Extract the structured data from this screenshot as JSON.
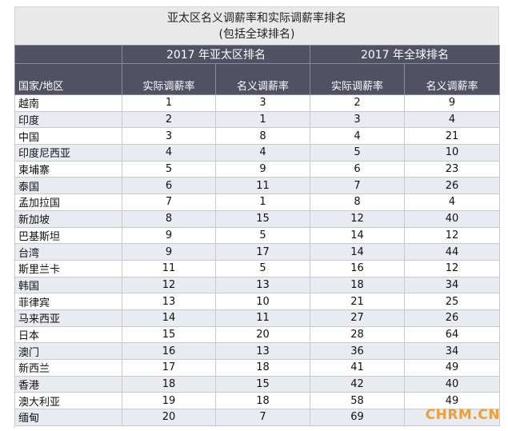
{
  "title": {
    "line1": "亚太区名义调薪率和实际调薪率排名",
    "line2": "(包括全球排名)"
  },
  "headers": {
    "group_apac": "2017 年亚太区排名",
    "group_global": "2017 年全球排名",
    "region": "国家/地区",
    "apac_real": "实际调薪率",
    "apac_nominal": "名义调薪率",
    "global_real": "实际调薪率",
    "global_nominal": "名义调薪率"
  },
  "rows": [
    {
      "name": "越南",
      "apac_real": "1",
      "apac_nominal": "3",
      "global_real": "2",
      "global_nominal": "9"
    },
    {
      "name": "印度",
      "apac_real": "2",
      "apac_nominal": "1",
      "global_real": "3",
      "global_nominal": "4"
    },
    {
      "name": "中国",
      "apac_real": "3",
      "apac_nominal": "8",
      "global_real": "4",
      "global_nominal": "21"
    },
    {
      "name": "印度尼西亚",
      "apac_real": "4",
      "apac_nominal": "4",
      "global_real": "5",
      "global_nominal": "10"
    },
    {
      "name": "柬埔寨",
      "apac_real": "5",
      "apac_nominal": "9",
      "global_real": "6",
      "global_nominal": "23"
    },
    {
      "name": "泰国",
      "apac_real": "6",
      "apac_nominal": "11",
      "global_real": "7",
      "global_nominal": "26"
    },
    {
      "name": "孟加拉国",
      "apac_real": "7",
      "apac_nominal": "1",
      "global_real": "8",
      "global_nominal": "4"
    },
    {
      "name": "新加坡",
      "apac_real": "8",
      "apac_nominal": "15",
      "global_real": "12",
      "global_nominal": "40"
    },
    {
      "name": "巴基斯坦",
      "apac_real": "9",
      "apac_nominal": "5",
      "global_real": "14",
      "global_nominal": "12"
    },
    {
      "name": "台湾",
      "apac_real": "9",
      "apac_nominal": "17",
      "global_real": "14",
      "global_nominal": "44"
    },
    {
      "name": "斯里兰卡",
      "apac_real": "11",
      "apac_nominal": "5",
      "global_real": "16",
      "global_nominal": "12"
    },
    {
      "name": "韩国",
      "apac_real": "12",
      "apac_nominal": "13",
      "global_real": "18",
      "global_nominal": "34"
    },
    {
      "name": "菲律宾",
      "apac_real": "13",
      "apac_nominal": "10",
      "global_real": "21",
      "global_nominal": "25"
    },
    {
      "name": "马来西亚",
      "apac_real": "14",
      "apac_nominal": "11",
      "global_real": "27",
      "global_nominal": "26"
    },
    {
      "name": "日本",
      "apac_real": "15",
      "apac_nominal": "20",
      "global_real": "28",
      "global_nominal": "64"
    },
    {
      "name": "澳门",
      "apac_real": "16",
      "apac_nominal": "13",
      "global_real": "36",
      "global_nominal": "34"
    },
    {
      "name": "新西兰",
      "apac_real": "17",
      "apac_nominal": "18",
      "global_real": "41",
      "global_nominal": "49"
    },
    {
      "name": "香港",
      "apac_real": "18",
      "apac_nominal": "15",
      "global_real": "42",
      "global_nominal": "40"
    },
    {
      "name": "澳大利亚",
      "apac_real": "19",
      "apac_nominal": "18",
      "global_real": "58",
      "global_nominal": "49"
    },
    {
      "name": "缅甸",
      "apac_real": "20",
      "apac_nominal": "7",
      "global_real": "69",
      "global_nominal": ""
    }
  ],
  "watermark": "CHRM.CN"
}
